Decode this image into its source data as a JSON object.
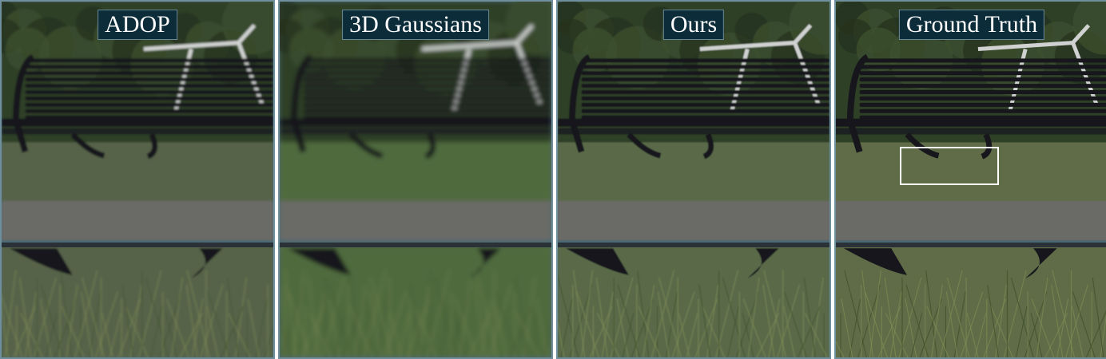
{
  "panels": [
    {
      "label": "ADOP",
      "tint": "#56644a",
      "blur": 1.4,
      "has_roi_box": false
    },
    {
      "label": "3D Gaussians",
      "tint": "#4f6a3e",
      "blur": 2.6,
      "has_roi_box": false
    },
    {
      "label": "Ours",
      "tint": "#5a6b48",
      "blur": 0.9,
      "has_roi_box": false
    },
    {
      "label": "Ground Truth",
      "tint": "#5f6c46",
      "blur": 0.4,
      "has_roi_box": true
    }
  ],
  "colors": {
    "foliage": "#2f3f26",
    "bench": "#14161a",
    "grass": "#56643e",
    "path": "#6b6a66",
    "label_bg": "#0c2c3a",
    "roi_box": "#ffffff"
  }
}
